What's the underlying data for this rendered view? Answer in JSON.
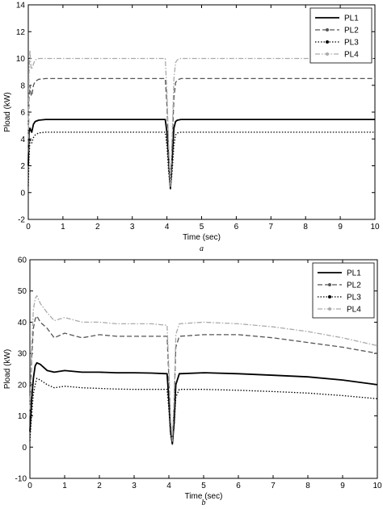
{
  "chart_data": [
    {
      "type": "line",
      "caption": "a",
      "xlabel": "Time (sec)",
      "ylabel": "Pload (kW)",
      "xlim": [
        0,
        10
      ],
      "ylim": [
        -2,
        14
      ],
      "xticks": [
        0,
        1,
        2,
        3,
        4,
        5,
        6,
        7,
        8,
        9,
        10
      ],
      "yticks": [
        -2,
        0,
        2,
        4,
        6,
        8,
        10,
        12,
        14
      ],
      "legend_position": "top-right",
      "series": [
        {
          "name": "PL1",
          "style": "solid",
          "color": "#000000",
          "x": [
            0,
            0.02,
            0.05,
            0.08,
            0.1,
            0.15,
            0.2,
            0.3,
            0.5,
            1,
            2,
            3,
            3.95,
            4.0,
            4.05,
            4.1,
            4.15,
            4.2,
            4.25,
            4.3,
            4.4,
            5,
            6,
            7,
            8,
            9,
            10
          ],
          "y": [
            2,
            4.5,
            4.8,
            4.6,
            4.5,
            5.1,
            5.3,
            5.4,
            5.45,
            5.45,
            5.45,
            5.45,
            5.45,
            4.5,
            2.5,
            0.3,
            2.5,
            4.8,
            5.3,
            5.4,
            5.45,
            5.45,
            5.45,
            5.45,
            5.45,
            5.45,
            5.45
          ]
        },
        {
          "name": "PL2",
          "style": "dashed",
          "color": "#555555",
          "x": [
            0,
            0.02,
            0.05,
            0.08,
            0.1,
            0.15,
            0.2,
            0.3,
            0.5,
            1,
            2,
            3,
            3.95,
            4.0,
            4.05,
            4.1,
            4.15,
            4.2,
            4.25,
            4.3,
            4.4,
            5,
            6,
            7,
            8,
            9,
            10
          ],
          "y": [
            3,
            7.0,
            8.0,
            7.3,
            7.2,
            8.0,
            8.3,
            8.45,
            8.5,
            8.5,
            8.5,
            8.5,
            8.5,
            6.5,
            3.0,
            0.35,
            3.5,
            7.0,
            8.2,
            8.4,
            8.5,
            8.5,
            8.5,
            8.5,
            8.5,
            8.5,
            8.5
          ]
        },
        {
          "name": "PL3",
          "style": "dotted",
          "color": "#000000",
          "x": [
            0,
            0.02,
            0.05,
            0.08,
            0.1,
            0.15,
            0.2,
            0.3,
            0.5,
            1,
            2,
            3,
            3.95,
            4.0,
            4.05,
            4.1,
            4.15,
            4.2,
            4.25,
            4.3,
            4.4,
            5,
            6,
            7,
            8,
            9,
            10
          ],
          "y": [
            0.5,
            2.5,
            4.0,
            3.8,
            3.7,
            4.1,
            4.3,
            4.45,
            4.5,
            4.5,
            4.5,
            4.5,
            4.5,
            3.5,
            1.5,
            0.25,
            1.5,
            3.5,
            4.3,
            4.45,
            4.5,
            4.5,
            4.5,
            4.5,
            4.5,
            4.5,
            4.5
          ]
        },
        {
          "name": "PL4",
          "style": "dashdot",
          "color": "#aaaaaa",
          "x": [
            0,
            0.02,
            0.05,
            0.08,
            0.1,
            0.15,
            0.2,
            0.3,
            0.5,
            1,
            2,
            3,
            3.95,
            4.0,
            4.05,
            4.1,
            4.15,
            4.2,
            4.25,
            4.3,
            4.4,
            5,
            6,
            7,
            8,
            9,
            10
          ],
          "y": [
            4,
            9.0,
            10.6,
            9.3,
            9.2,
            9.6,
            9.9,
            10.0,
            10.0,
            10.0,
            10.0,
            10.0,
            10.0,
            7.5,
            3.5,
            0.4,
            4.0,
            8.5,
            9.7,
            9.9,
            10.0,
            10.0,
            10.0,
            10.0,
            10.0,
            10.0,
            10.0
          ]
        }
      ]
    },
    {
      "type": "line",
      "caption": "b",
      "xlabel": "Time (sec)",
      "ylabel": "Pload (kW)",
      "xlim": [
        0,
        10
      ],
      "ylim": [
        -10,
        60
      ],
      "xticks": [
        0,
        1,
        2,
        3,
        4,
        5,
        6,
        7,
        8,
        9,
        10
      ],
      "yticks": [
        -10,
        0,
        10,
        20,
        30,
        40,
        50,
        60
      ],
      "legend_position": "top-right",
      "series": [
        {
          "name": "PL1",
          "style": "solid",
          "color": "#000000",
          "x": [
            0,
            0.05,
            0.1,
            0.15,
            0.2,
            0.3,
            0.5,
            0.7,
            1,
            1.5,
            2,
            2.5,
            3,
            3.5,
            3.95,
            4.0,
            4.05,
            4.1,
            4.15,
            4.2,
            4.3,
            5,
            6,
            7,
            8,
            9,
            10
          ],
          "y": [
            5,
            15,
            22,
            26,
            27,
            26.5,
            24.5,
            24,
            24.5,
            24,
            24,
            23.8,
            23.8,
            23.7,
            23.5,
            15,
            5,
            1,
            8,
            20,
            23.5,
            23.8,
            23.5,
            23,
            22.5,
            21.5,
            20
          ]
        },
        {
          "name": "PL2",
          "style": "dashed",
          "color": "#555555",
          "x": [
            0,
            0.05,
            0.1,
            0.15,
            0.2,
            0.3,
            0.5,
            0.7,
            1,
            1.5,
            2,
            2.5,
            3,
            3.5,
            3.95,
            4.0,
            4.05,
            4.1,
            4.15,
            4.2,
            4.3,
            5,
            6,
            7,
            8,
            9,
            10
          ],
          "y": [
            10,
            28,
            38,
            41,
            42,
            40,
            38,
            35,
            36.5,
            35,
            36,
            35.5,
            35.5,
            35.5,
            35.5,
            22,
            8,
            1.5,
            14,
            32,
            35.5,
            36,
            36,
            35,
            33.5,
            32,
            30
          ]
        },
        {
          "name": "PL3",
          "style": "dotted",
          "color": "#000000",
          "x": [
            0,
            0.05,
            0.1,
            0.15,
            0.2,
            0.3,
            0.5,
            0.7,
            1,
            1.5,
            2,
            2.5,
            3,
            3.5,
            3.95,
            4.0,
            4.05,
            4.1,
            4.15,
            4.2,
            4.3,
            5,
            6,
            7,
            8,
            9,
            10
          ],
          "y": [
            2,
            10,
            17,
            20,
            22,
            21.5,
            20,
            19,
            19.5,
            19,
            18.8,
            18.6,
            18.5,
            18.5,
            18.5,
            12,
            4,
            1,
            7,
            16,
            18.5,
            18.5,
            18.2,
            17.8,
            17.3,
            16.5,
            15.5
          ]
        },
        {
          "name": "PL4",
          "style": "dashdot",
          "color": "#aaaaaa",
          "x": [
            0,
            0.05,
            0.1,
            0.15,
            0.2,
            0.3,
            0.5,
            0.7,
            1,
            1.5,
            2,
            2.5,
            3,
            3.5,
            3.95,
            4.0,
            4.05,
            4.1,
            4.15,
            4.2,
            4.3,
            5,
            6,
            7,
            8,
            9,
            10
          ],
          "y": [
            12,
            32,
            44,
            47.5,
            48.5,
            46,
            43,
            40.5,
            41.5,
            40,
            40,
            39.5,
            39.5,
            39.5,
            39,
            25,
            9,
            2,
            16,
            36,
            39.5,
            40,
            39.5,
            38.5,
            37,
            35,
            32.5
          ]
        }
      ]
    }
  ]
}
